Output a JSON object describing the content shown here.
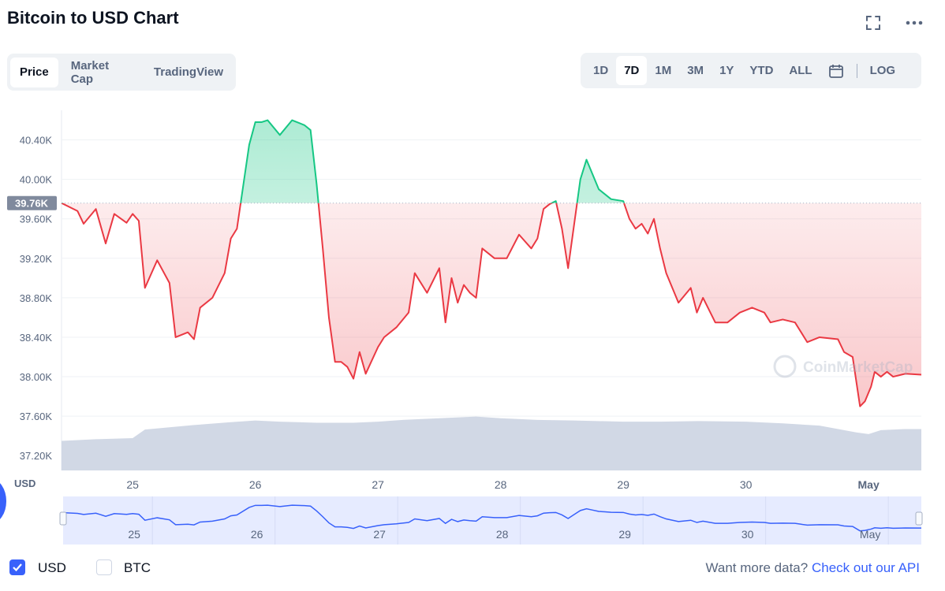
{
  "title": "Bitcoin to USD Chart",
  "top_icons": [
    "fullscreen-icon",
    "more-icon"
  ],
  "tabs": [
    {
      "label": "Price",
      "active": true
    },
    {
      "label": "Market Cap",
      "active": false
    },
    {
      "label": "TradingView",
      "active": false
    }
  ],
  "ranges": [
    {
      "label": "1D",
      "active": false
    },
    {
      "label": "7D",
      "active": true
    },
    {
      "label": "1M",
      "active": false
    },
    {
      "label": "3M",
      "active": false
    },
    {
      "label": "1Y",
      "active": false
    },
    {
      "label": "YTD",
      "active": false
    },
    {
      "label": "ALL",
      "active": false
    }
  ],
  "log_label": "LOG",
  "footer": {
    "usd_label": "USD",
    "usd_checked": true,
    "btc_label": "BTC",
    "btc_checked": false,
    "more_text": "Want more data?",
    "more_link": "Check out our API"
  },
  "watermark": "CoinMarketCap",
  "colors": {
    "up": "#16c784",
    "down": "#ea3943",
    "volume": "#cfd6e4",
    "navigator_line": "#3861fb",
    "accent": "#3861fb"
  },
  "chart_data": {
    "type": "line",
    "currency": "USD",
    "y_ticks": [
      "40.40K",
      "40.00K",
      "39.60K",
      "39.20K",
      "38.80K",
      "38.40K",
      "38.00K",
      "37.60K",
      "37.20K"
    ],
    "y_tick_values": [
      40400,
      40000,
      39600,
      39200,
      38800,
      38400,
      38000,
      37600,
      37200
    ],
    "ylim": [
      37050,
      40700
    ],
    "x_ticks": [
      "25",
      "26",
      "27",
      "28",
      "29",
      "30",
      "May"
    ],
    "x_tick_values": [
      1,
      2,
      3,
      4,
      5,
      6,
      7
    ],
    "xlim": [
      0.42,
      7.43
    ],
    "reference_value": 39760,
    "reference_label": "39.76K",
    "series": [
      {
        "x": [
          0.42,
          0.55,
          0.6,
          0.7,
          0.78,
          0.85,
          0.95,
          1.0,
          1.05,
          1.1,
          1.2,
          1.3,
          1.35,
          1.45,
          1.5,
          1.55,
          1.65,
          1.75,
          1.8,
          1.85,
          1.95,
          2.0,
          2.05,
          2.1,
          2.2,
          2.3,
          2.4,
          2.45,
          2.5,
          2.55,
          2.6,
          2.65,
          2.7,
          2.75,
          2.8,
          2.85,
          2.9,
          3.0,
          3.05,
          3.15,
          3.25,
          3.3,
          3.4,
          3.5,
          3.55,
          3.6,
          3.65,
          3.7,
          3.75,
          3.8,
          3.85,
          3.95,
          4.05,
          4.15,
          4.25,
          4.3,
          4.35,
          4.4,
          4.45,
          4.5,
          4.55,
          4.6,
          4.65,
          4.7,
          4.75,
          4.8,
          4.85,
          4.9,
          5.0,
          5.05,
          5.1,
          5.15,
          5.2,
          5.25,
          5.3,
          5.35,
          5.45,
          5.55,
          5.6,
          5.65,
          5.75,
          5.85,
          5.95,
          6.05,
          6.15,
          6.2,
          6.3,
          6.4,
          6.45,
          6.5,
          6.6,
          6.75,
          6.8,
          6.87,
          6.93,
          6.97,
          7.02,
          7.05,
          7.1,
          7.15,
          7.2,
          7.3,
          7.43
        ],
        "values": [
          39760,
          39680,
          39550,
          39700,
          39350,
          39650,
          39560,
          39650,
          39580,
          38900,
          39180,
          38950,
          38400,
          38450,
          38380,
          38700,
          38800,
          39050,
          39400,
          39500,
          40350,
          40580,
          40580,
          40600,
          40450,
          40600,
          40550,
          40500,
          39950,
          39300,
          38600,
          38150,
          38150,
          38100,
          37980,
          38250,
          38030,
          38300,
          38400,
          38500,
          38650,
          39050,
          38850,
          39100,
          38550,
          39000,
          38750,
          38930,
          38850,
          38800,
          39300,
          39200,
          39200,
          39440,
          39300,
          39400,
          39700,
          39750,
          39780,
          39500,
          39100,
          39550,
          40000,
          40200,
          40050,
          39900,
          39850,
          39800,
          39780,
          39600,
          39500,
          39550,
          39450,
          39600,
          39300,
          39050,
          38750,
          38900,
          38650,
          38800,
          38550,
          38550,
          38650,
          38700,
          38650,
          38550,
          38580,
          38550,
          38450,
          38350,
          38400,
          38380,
          38250,
          38200,
          37700,
          37750,
          37900,
          38050,
          38000,
          38050,
          38000,
          38030,
          38020
        ]
      }
    ],
    "volume": {
      "x": [
        0.42,
        0.7,
        1.0,
        1.1,
        1.3,
        1.5,
        1.8,
        2.0,
        2.2,
        2.5,
        2.8,
        3.0,
        3.2,
        3.5,
        3.8,
        4.0,
        4.3,
        4.6,
        5.0,
        5.3,
        5.6,
        6.0,
        6.3,
        6.6,
        6.9,
        7.0,
        7.1,
        7.3,
        7.43
      ],
      "values": [
        0.52,
        0.55,
        0.57,
        0.72,
        0.76,
        0.8,
        0.85,
        0.88,
        0.86,
        0.84,
        0.84,
        0.86,
        0.89,
        0.92,
        0.95,
        0.92,
        0.89,
        0.88,
        0.86,
        0.86,
        0.87,
        0.86,
        0.83,
        0.79,
        0.67,
        0.64,
        0.71,
        0.73,
        0.73
      ]
    },
    "navigator_ticks": [
      "25",
      "26",
      "27",
      "28",
      "29",
      "30",
      "May"
    ]
  }
}
